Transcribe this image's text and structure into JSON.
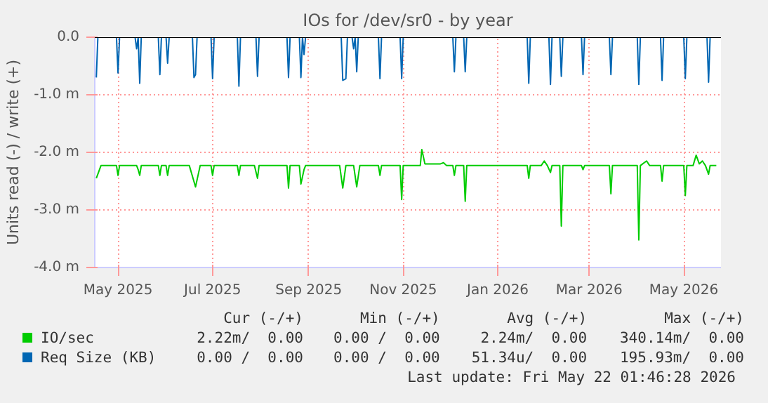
{
  "chart_data": {
    "type": "line",
    "title": "IOs for /dev/sr0 - by year",
    "ylabel": "Units read (-) / write (+)",
    "xlim": [
      "2025-04-16",
      "2026-05-25"
    ],
    "xticks": [
      {
        "value": "2025-05-01",
        "label": "May 2025"
      },
      {
        "value": "2025-07-01",
        "label": "Jul 2025"
      },
      {
        "value": "2025-09-01",
        "label": "Sep 2025"
      },
      {
        "value": "2025-11-01",
        "label": "Nov 2025"
      },
      {
        "value": "2026-01-01",
        "label": "Jan 2026"
      },
      {
        "value": "2026-03-01",
        "label": "Mar 2026"
      },
      {
        "value": "2026-05-01",
        "label": "May 2026"
      }
    ],
    "ylim": [
      -4,
      0
    ],
    "yticks": [
      {
        "value": 0,
        "label": "0.0"
      },
      {
        "value": -1,
        "label": "-1.0 m"
      },
      {
        "value": -2,
        "label": "-2.0 m"
      },
      {
        "value": -3,
        "label": "-3.0 m"
      },
      {
        "value": -4,
        "label": "-4.0 m"
      }
    ],
    "grid": true,
    "legend": "bottom",
    "marker": "none",
    "line_style": "solid",
    "ref_lines": [
      {
        "axis": "y",
        "value": 0,
        "color": "#000000"
      }
    ],
    "series": [
      {
        "name": "IO/sec",
        "color": "#00cc00",
        "x": [
          "2025-04-17",
          "2025-04-20",
          "2025-04-30",
          "2025-05-01",
          "2025-05-02",
          "2025-05-13",
          "2025-05-14",
          "2025-05-15",
          "2025-05-16",
          "2025-05-27",
          "2025-05-28",
          "2025-05-29",
          "2025-06-01",
          "2025-06-02",
          "2025-06-03",
          "2025-06-16",
          "2025-06-20",
          "2025-06-23",
          "2025-06-30",
          "2025-07-01",
          "2025-07-02",
          "2025-07-17",
          "2025-07-18",
          "2025-07-19",
          "2025-07-28",
          "2025-07-30",
          "2025-07-31",
          "2025-08-18",
          "2025-08-19",
          "2025-08-20",
          "2025-08-26",
          "2025-08-27",
          "2025-08-29",
          "2025-08-30",
          "2025-09-21",
          "2025-09-23",
          "2025-09-25",
          "2025-09-30",
          "2025-10-02",
          "2025-10-04",
          "2025-10-16",
          "2025-10-17",
          "2025-10-18",
          "2025-10-30",
          "2025-10-31",
          "2025-11-01",
          "2025-11-12",
          "2025-11-13",
          "2025-11-15",
          "2025-11-25",
          "2025-11-27",
          "2025-11-29",
          "2025-12-03",
          "2025-12-04",
          "2025-12-05",
          "2025-12-10",
          "2025-12-11",
          "2025-12-12",
          "2026-01-20",
          "2026-01-21",
          "2026-01-22",
          "2026-01-29",
          "2026-01-31",
          "2026-02-02",
          "2026-02-04",
          "2026-02-05",
          "2026-02-10",
          "2026-02-11",
          "2026-02-12",
          "2026-02-24",
          "2026-02-25",
          "2026-02-26",
          "2026-03-14",
          "2026-03-15",
          "2026-03-16",
          "2026-04-01",
          "2026-04-02",
          "2026-04-03",
          "2026-04-07",
          "2026-04-09",
          "2026-04-16",
          "2026-04-17",
          "2026-04-18",
          "2026-05-01",
          "2026-05-02",
          "2026-05-03",
          "2026-05-07",
          "2026-05-09",
          "2026-05-11",
          "2026-05-13",
          "2026-05-15",
          "2026-05-17",
          "2026-05-18",
          "2026-05-22"
        ],
        "values": [
          -2.45,
          -2.23,
          -2.23,
          -2.4,
          -2.23,
          -2.23,
          -2.3,
          -2.4,
          -2.23,
          -2.23,
          -2.4,
          -2.23,
          -2.23,
          -2.4,
          -2.23,
          -2.23,
          -2.6,
          -2.23,
          -2.23,
          -2.4,
          -2.23,
          -2.23,
          -2.4,
          -2.23,
          -2.23,
          -2.45,
          -2.23,
          -2.23,
          -2.62,
          -2.23,
          -2.23,
          -2.55,
          -2.3,
          -2.23,
          -2.23,
          -2.62,
          -2.23,
          -2.23,
          -2.6,
          -2.23,
          -2.23,
          -2.4,
          -2.23,
          -2.23,
          -2.82,
          -2.23,
          -2.23,
          -1.95,
          -2.2,
          -2.2,
          -2.18,
          -2.23,
          -2.23,
          -2.4,
          -2.23,
          -2.23,
          -2.85,
          -2.23,
          -2.23,
          -2.45,
          -2.23,
          -2.23,
          -2.15,
          -2.23,
          -2.35,
          -2.23,
          -2.23,
          -3.28,
          -2.23,
          -2.23,
          -2.3,
          -2.23,
          -2.23,
          -2.72,
          -2.23,
          -2.23,
          -3.52,
          -2.23,
          -2.15,
          -2.23,
          -2.23,
          -2.5,
          -2.23,
          -2.23,
          -2.75,
          -2.23,
          -2.23,
          -2.05,
          -2.2,
          -2.15,
          -2.23,
          -2.38,
          -2.23,
          -2.23
        ]
      },
      {
        "name": "Req Size (KB)",
        "color": "#0066b3",
        "x": [
          "2025-04-17",
          "2025-04-18",
          "2025-04-30",
          "2025-05-01",
          "2025-05-02",
          "2025-05-12",
          "2025-05-13",
          "2025-05-14",
          "2025-05-15",
          "2025-05-16",
          "2025-05-27",
          "2025-05-28",
          "2025-05-29",
          "2025-06-01",
          "2025-06-02",
          "2025-06-03",
          "2025-06-18",
          "2025-06-19",
          "2025-06-20",
          "2025-06-21",
          "2025-06-30",
          "2025-07-01",
          "2025-07-02",
          "2025-07-17",
          "2025-07-18",
          "2025-07-19",
          "2025-07-29",
          "2025-07-30",
          "2025-07-31",
          "2025-08-18",
          "2025-08-19",
          "2025-08-20",
          "2025-08-26",
          "2025-08-27",
          "2025-08-28",
          "2025-08-29",
          "2025-08-30",
          "2025-09-22",
          "2025-09-23",
          "2025-09-25",
          "2025-09-26",
          "2025-09-29",
          "2025-09-30",
          "2025-10-01",
          "2025-10-02",
          "2025-10-03",
          "2025-10-16",
          "2025-10-17",
          "2025-10-18",
          "2025-10-30",
          "2025-10-31",
          "2025-11-01",
          "2025-12-03",
          "2025-12-04",
          "2025-12-05",
          "2025-12-10",
          "2025-12-11",
          "2025-12-12",
          "2026-01-20",
          "2026-01-21",
          "2026-01-22",
          "2026-02-03",
          "2026-02-04",
          "2026-02-05",
          "2026-02-10",
          "2026-02-11",
          "2026-02-12",
          "2026-02-24",
          "2026-02-25",
          "2026-02-26",
          "2026-03-14",
          "2026-03-15",
          "2026-03-16",
          "2026-04-01",
          "2026-04-02",
          "2026-04-03",
          "2026-04-16",
          "2026-04-17",
          "2026-04-18",
          "2026-05-01",
          "2026-05-02",
          "2026-05-03",
          "2026-05-16",
          "2026-05-17",
          "2026-05-18",
          "2026-05-22"
        ],
        "values": [
          -0.7,
          0,
          0,
          -0.62,
          0,
          0,
          -0.2,
          0,
          -0.8,
          0,
          0,
          -0.65,
          0,
          0,
          -0.45,
          0,
          0,
          -0.7,
          -0.65,
          0,
          0,
          -0.72,
          0,
          0,
          -0.85,
          0,
          0,
          -0.68,
          0,
          0,
          -0.7,
          0,
          0,
          -0.7,
          0,
          -0.3,
          0,
          0,
          -0.75,
          -0.72,
          0,
          0,
          -0.2,
          0,
          -0.6,
          0,
          0,
          -0.72,
          0,
          0,
          -0.72,
          0,
          0,
          -0.6,
          0,
          0,
          -0.6,
          0,
          0,
          -0.8,
          0,
          0,
          -0.82,
          0,
          0,
          -0.68,
          0,
          0,
          -0.65,
          0,
          0,
          -0.65,
          0,
          0,
          -0.82,
          0,
          0,
          -0.75,
          0,
          0,
          -0.72,
          0,
          0,
          -0.78,
          0,
          0
        ]
      }
    ],
    "annotations": [
      "Cur (-/+)",
      "Min (-/+)",
      "Avg (-/+)",
      "Max (-/+)",
      "2.22m/  0.00",
      "0.00 /  0.00",
      "2.24m/  0.00",
      "340.14m/  0.00",
      "0.00 /  0.00",
      "0.00 /  0.00",
      "51.34u/  0.00",
      "195.93m/  0.00",
      "Last update: Fri May 22 01:46:28 2026"
    ]
  }
}
